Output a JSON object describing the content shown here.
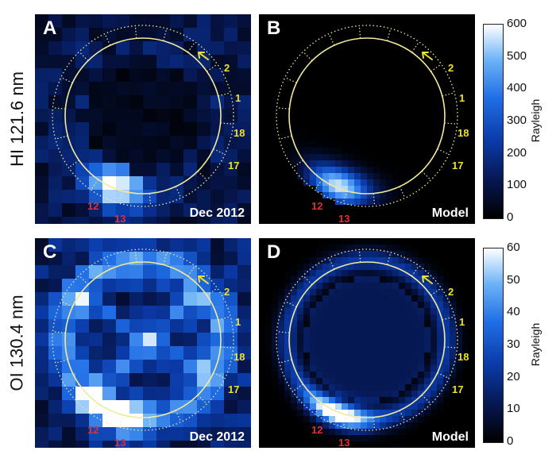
{
  "rows": [
    {
      "label": "HI 121.6 nm",
      "cbar_ticks": [
        "600",
        "500",
        "400",
        "300",
        "200",
        "100",
        "0"
      ],
      "unit": "Rayleigh"
    },
    {
      "label": "OI 130.4 nm",
      "cbar_ticks": [
        "60",
        "50",
        "40",
        "30",
        "20",
        "10",
        "0"
      ],
      "unit": "Rayleigh"
    }
  ],
  "panels": [
    {
      "id": "A",
      "caption": "Dec 2012"
    },
    {
      "id": "B",
      "caption": "Model"
    },
    {
      "id": "C",
      "caption": "Dec 2012"
    },
    {
      "id": "D",
      "caption": "Model"
    }
  ],
  "sectors_yellow": [
    "2",
    "1",
    "18",
    "17"
  ],
  "sectors_red": [
    "12",
    "13"
  ],
  "colors": {
    "ring": "#f2ea9a",
    "sector_yellow": "#f0e030",
    "sector_red": "#e23030",
    "colormap_low": "#000000",
    "colormap_mid": "#1f6ee6",
    "colormap_high": "#ffffff"
  }
}
